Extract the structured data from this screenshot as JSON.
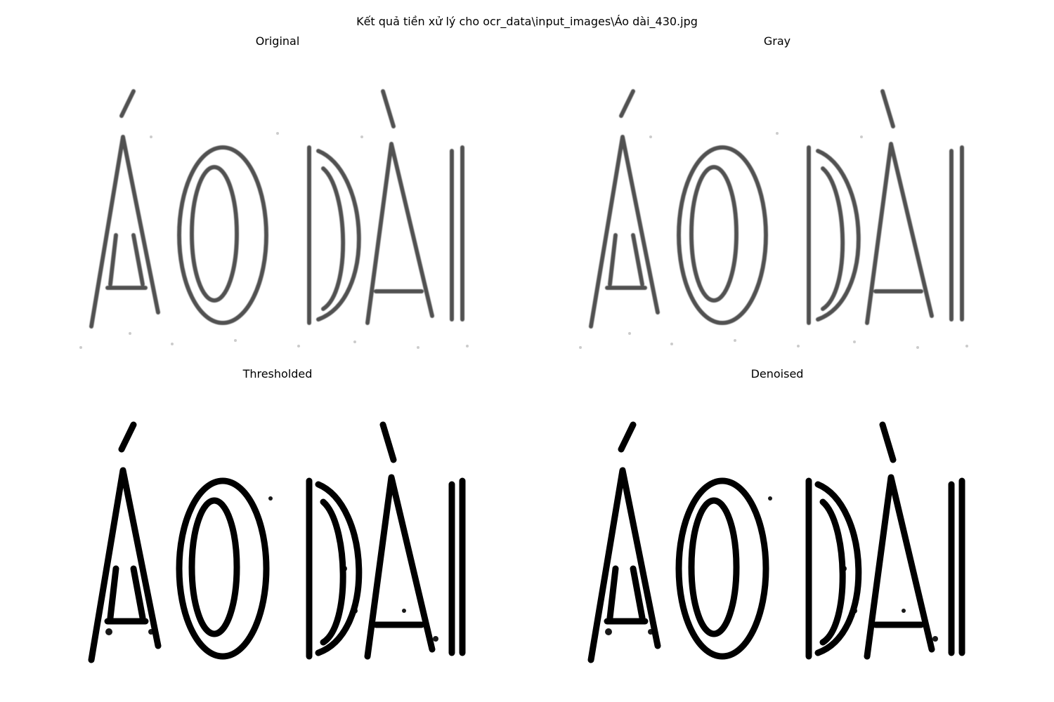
{
  "figure": {
    "suptitle": "Kết quả tiền xử lý cho ocr_data\\input_images\\Áo dài_430.jpg"
  },
  "panels": [
    {
      "title": "Original",
      "style": "soft",
      "color": "#333333"
    },
    {
      "title": "Gray",
      "style": "soft",
      "color": "#333333"
    },
    {
      "title": "Thresholded",
      "style": "hard",
      "color": "#000000"
    },
    {
      "title": "Denoised",
      "style": "hard",
      "color": "#000000"
    }
  ],
  "image_text": "ÁO DÀI"
}
